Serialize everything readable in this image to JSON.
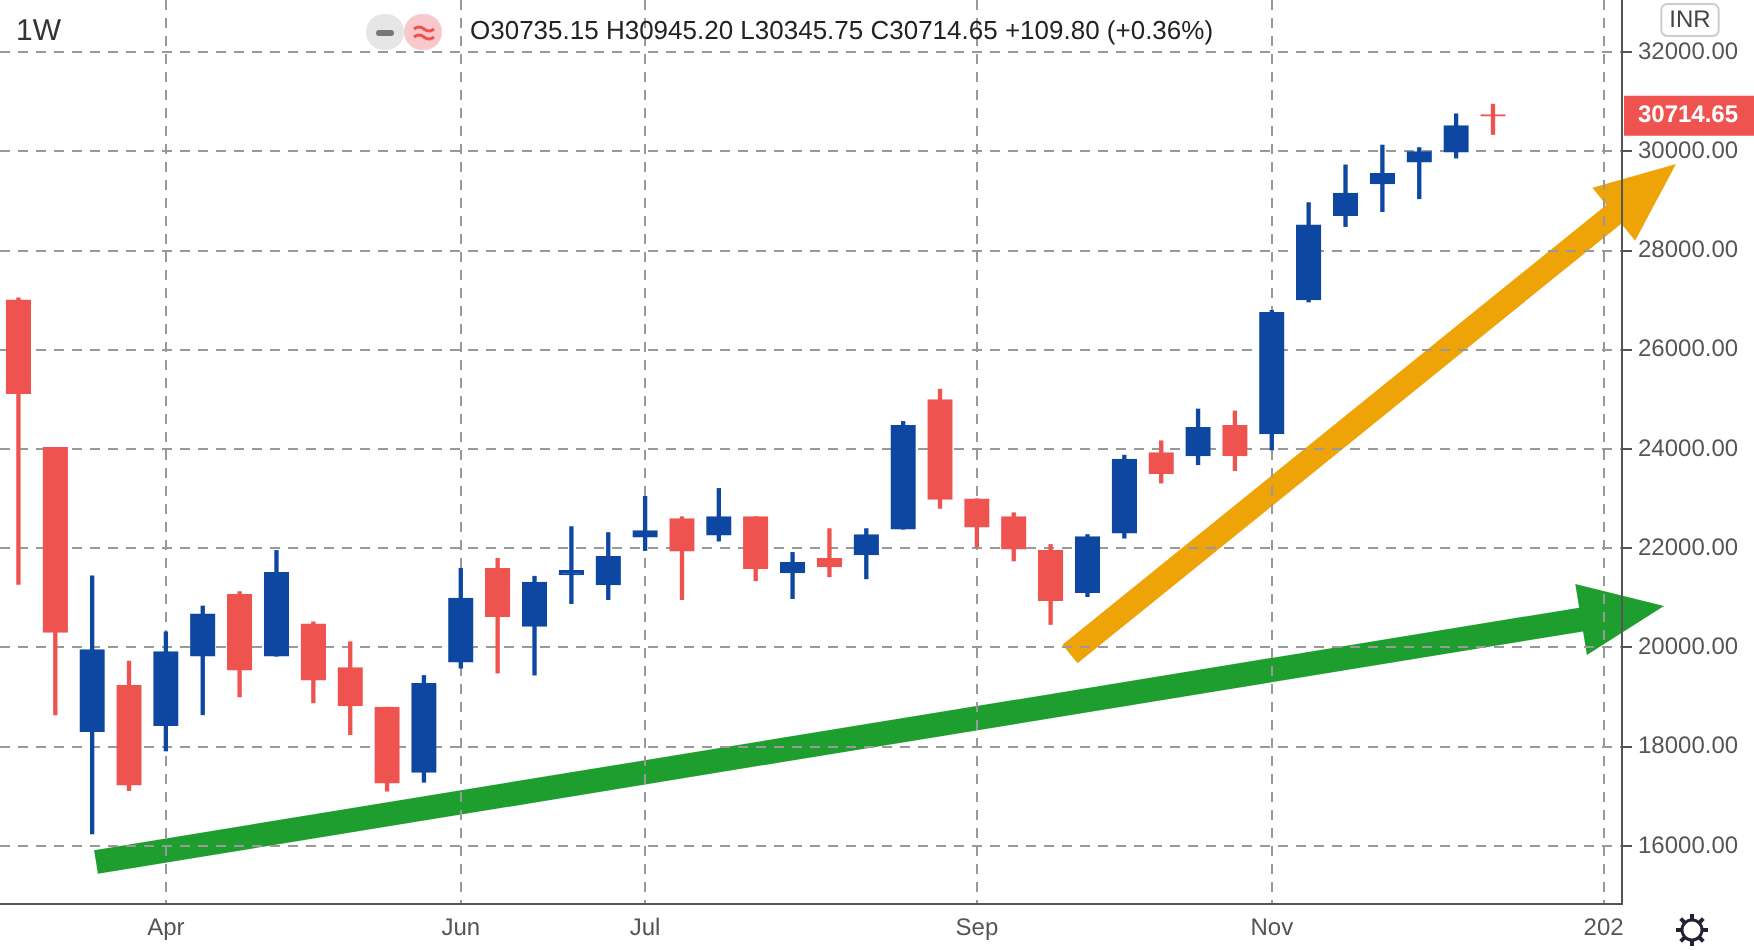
{
  "chart_data": {
    "type": "candlestick",
    "title": "1W",
    "ylabel": "INR",
    "annotations": [
      "O30735.15 H30945.20 L30345.75 C30714.65 +109.80 (+0.36%)",
      "30714.65"
    ],
    "categories": [
      null,
      null,
      null,
      null,
      "Apr",
      null,
      null,
      null,
      null,
      null,
      null,
      null,
      "Jun",
      null,
      null,
      null,
      null,
      "Jul",
      null,
      null,
      null,
      null,
      null,
      null,
      null,
      null,
      "Sep",
      null,
      null,
      null,
      null,
      null,
      null,
      null,
      "Nov",
      null,
      null,
      null,
      null,
      null,
      null,
      null,
      null,
      "202"
    ],
    "ohlc": [
      [
        27000,
        27040,
        21280,
        25120
      ],
      [
        24030,
        24030,
        18650,
        20310
      ],
      [
        18310,
        21440,
        16250,
        19950
      ],
      [
        19230,
        19720,
        17120,
        17230
      ],
      [
        18430,
        20310,
        17920,
        19910
      ],
      [
        19830,
        20830,
        18650,
        20670
      ],
      [
        21070,
        21120,
        19010,
        19550
      ],
      [
        19830,
        21950,
        19830,
        21510
      ],
      [
        20470,
        20510,
        18890,
        19350
      ],
      [
        19590,
        20110,
        18250,
        18830
      ],
      [
        18790,
        18790,
        17110,
        17270
      ],
      [
        17490,
        19430,
        17290,
        19270
      ],
      [
        19710,
        21590,
        19590,
        20990
      ],
      [
        21590,
        21790,
        19490,
        20630
      ],
      [
        20430,
        21430,
        19450,
        21310
      ],
      [
        21470,
        22430,
        20890,
        21550
      ],
      [
        21270,
        22310,
        20970,
        21830
      ],
      [
        22230,
        23040,
        21960,
        22350
      ],
      [
        22590,
        22630,
        20970,
        21950
      ],
      [
        22270,
        23200,
        22150,
        22630
      ],
      [
        22630,
        22630,
        21350,
        21590
      ],
      [
        21510,
        21910,
        20990,
        21710
      ],
      [
        21790,
        22390,
        21430,
        21630
      ],
      [
        21870,
        22390,
        21390,
        22270
      ],
      [
        22390,
        24550,
        22390,
        24470
      ],
      [
        24990,
        25200,
        22810,
        22990
      ],
      [
        22990,
        22990,
        22030,
        22430
      ],
      [
        22630,
        22710,
        21750,
        21990
      ],
      [
        21950,
        22070,
        20470,
        20950
      ],
      [
        21110,
        22270,
        21030,
        22230
      ],
      [
        22310,
        23870,
        22210,
        23790
      ],
      [
        23920,
        24160,
        23320,
        23510
      ],
      [
        23870,
        24800,
        23690,
        24430
      ],
      [
        24470,
        24760,
        23570,
        23870
      ],
      [
        24310,
        26790,
        23990,
        26750
      ],
      [
        27010,
        28960,
        26970,
        28510
      ],
      [
        28710,
        29720,
        28490,
        29150
      ],
      [
        29350,
        30120,
        28790,
        29550
      ],
      [
        29790,
        30070,
        29050,
        29990
      ],
      [
        29990,
        30750,
        29870,
        30510
      ],
      [
        30735.15,
        30945.2,
        30345.75,
        30714.65
      ],
      null,
      null,
      null
    ],
    "colors": [
      "#ef5350",
      "#ef5350",
      "#0d47a1",
      "#ef5350",
      "#0d47a1",
      "#0d47a1",
      "#ef5350",
      "#0d47a1",
      "#ef5350",
      "#ef5350",
      "#ef5350",
      "#0d47a1",
      "#0d47a1",
      "#ef5350",
      "#0d47a1",
      "#0d47a1",
      "#0d47a1",
      "#0d47a1",
      "#ef5350",
      "#0d47a1",
      "#ef5350",
      "#0d47a1",
      "#ef5350",
      "#0d47a1",
      "#0d47a1",
      "#ef5350",
      "#ef5350",
      "#ef5350",
      "#ef5350",
      "#0d47a1",
      "#0d47a1",
      "#ef5350",
      "#0d47a1",
      "#ef5350",
      "#0d47a1",
      "#0d47a1",
      "#0d47a1",
      "#0d47a1",
      "#0d47a1",
      "#0d47a1",
      "#ef5350",
      null,
      null,
      null
    ],
    "ylim": [
      14830,
      33050
    ],
    "yticks": [
      {
        "value": 16000,
        "label": "16000.00"
      },
      {
        "value": 18000,
        "label": "18000.00"
      },
      {
        "value": 20000,
        "label": "20000.00"
      },
      {
        "value": 22000,
        "label": "22000.00"
      },
      {
        "value": 24000,
        "label": "24000.00"
      },
      {
        "value": 26000,
        "label": "26000.00"
      },
      {
        "value": 28000,
        "label": "28000.00"
      },
      {
        "value": 30000,
        "label": "30000.00"
      },
      {
        "value": 32000,
        "label": "32000.00"
      }
    ],
    "grid": true
  }
}
